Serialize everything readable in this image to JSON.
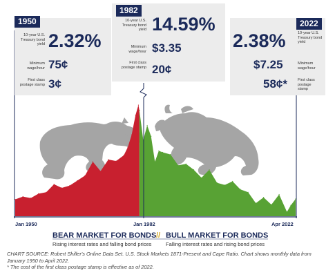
{
  "panels": {
    "p1950": {
      "year": "1950",
      "yield_label": "10-year U.S. Treasury bond yield",
      "yield": "2.32%",
      "wage_label": "Minimum wage/hour",
      "wage": "75¢",
      "postage_label": "First class postage stamp",
      "postage": "3¢"
    },
    "p1982": {
      "year": "1982",
      "yield_label": "10-year U.S. Treasury bond yield",
      "yield": "14.59%",
      "wage_label": "Minimum wage/hour",
      "wage": "$3.35",
      "postage_label": "First class postage stamp",
      "postage": "20¢"
    },
    "p2022": {
      "year": "2022",
      "yield_label": "10-year U.S. Treasury bond yield",
      "yield": "2.38%",
      "wage_label": "Minimum wage/hour",
      "wage": "$7.25",
      "postage_label": "First class postage stamp",
      "postage": "58¢*"
    }
  },
  "legend": {
    "bear": "BEAR MARKET FOR BONDS",
    "sep": "//",
    "bull": "BULL MARKET FOR BONDS",
    "bear_sub": "Rising interest rates and falling bond prices",
    "bull_sub": "Falling interest rates and rising bond prices"
  },
  "source": {
    "line1": "CHART SOURCE: Robert Shiller's Online Data Set. U.S. Stock Markets 1871-Present and Cape Ratio. Chart shows monthly data from January 1950 to April 2022.",
    "line2": "* The cost of the first class postage stamp is effective as of 2022."
  },
  "colors": {
    "bear": "#c8202f",
    "bull": "#58a234",
    "navy": "#1b2a5a",
    "panel": "#ececec"
  },
  "chart_data": {
    "type": "area",
    "title": "",
    "xlabel": "",
    "ylabel": "10-year U.S. Treasury bond yield",
    "x_ticks": [
      "Jan 1950",
      "Jan 1982",
      "Apr 2022"
    ],
    "xlim": [
      1950,
      2022.25
    ],
    "ylim": [
      0,
      15.5
    ],
    "series": [
      {
        "name": "",
        "color": "#c8202f",
        "x": [
          1950,
          1952,
          1954,
          1956,
          1958,
          1960,
          1962,
          1964,
          1966,
          1968,
          1970,
          1972,
          1974,
          1976,
          1978,
          1979,
          1980,
          1981,
          1981.75,
          1982
        ],
        "values": [
          2.32,
          2.7,
          2.5,
          3.1,
          3.3,
          4.4,
          3.9,
          4.2,
          4.9,
          5.6,
          7.5,
          6.2,
          7.8,
          7.6,
          8.4,
          9.5,
          11.2,
          13.9,
          15.3,
          14.59
        ]
      },
      {
        "name": "",
        "color": "#58a234",
        "x": [
          1982,
          1983,
          1984,
          1985,
          1986,
          1987,
          1988,
          1990,
          1992,
          1994,
          1996,
          1998,
          2000,
          2002,
          2004,
          2006,
          2008,
          2010,
          2012,
          2014,
          2016,
          2018,
          2020,
          2021,
          2022.25
        ],
        "values": [
          14.59,
          10.5,
          12.5,
          11.0,
          7.5,
          9.0,
          8.8,
          8.5,
          7.0,
          7.2,
          6.4,
          5.3,
          6.4,
          4.6,
          4.3,
          4.8,
          3.7,
          3.3,
          1.8,
          2.6,
          1.6,
          3.0,
          0.6,
          1.5,
          2.38
        ]
      }
    ]
  }
}
